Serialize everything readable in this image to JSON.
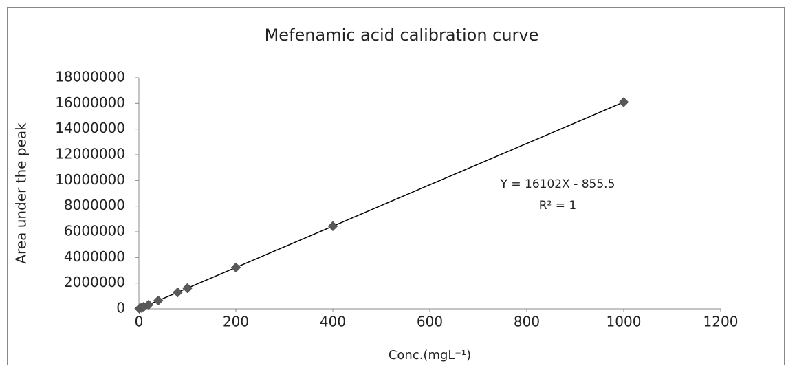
{
  "chart_data": {
    "type": "scatter",
    "title": "Mefenamic acid calibration curve",
    "xlabel": "Conc.(mgL⁻¹)",
    "ylabel": "Area under the peak",
    "x": [
      1,
      5,
      10,
      20,
      40,
      80,
      100,
      200,
      400,
      1000
    ],
    "series": [
      {
        "color": "#595959",
        "values": [
          15246,
          79654,
          160164,
          321184,
          643224,
          1287304,
          1609344,
          3219544,
          6439944,
          16101144
        ]
      }
    ],
    "xlim": [
      0,
      1200
    ],
    "xticks": [
      0,
      200,
      400,
      600,
      800,
      1000,
      1200
    ],
    "ylim": [
      0,
      18000000
    ],
    "yticks": [
      0,
      2000000,
      4000000,
      6000000,
      8000000,
      10000000,
      12000000,
      14000000,
      16000000,
      18000000
    ],
    "grid": false,
    "trendline": {
      "equation": "Y = 16102X - 855.5",
      "r_squared": "R² = 1",
      "color": "#000000"
    }
  }
}
